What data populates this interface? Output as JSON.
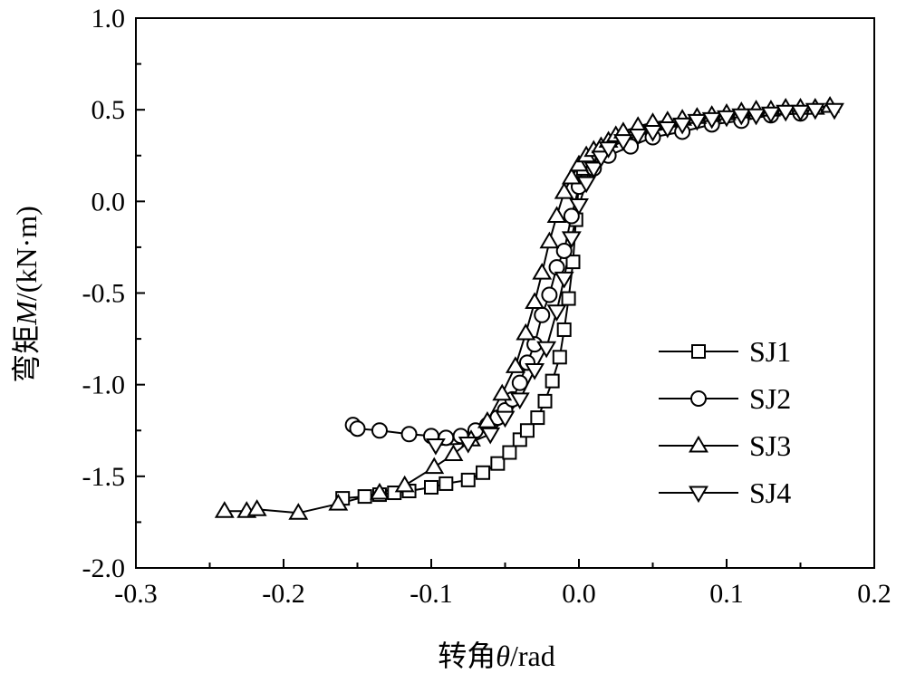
{
  "chart_data": {
    "type": "line",
    "xlabel_prefix": "转角",
    "xlabel_symbol": "θ",
    "xlabel_unit": "/rad",
    "ylabel_prefix": "弯矩",
    "ylabel_symbol": "M",
    "ylabel_unit": "/(kN·m)",
    "xlim": [
      -0.3,
      0.2
    ],
    "ylim": [
      -2.0,
      1.0
    ],
    "x_ticks": [
      -0.3,
      -0.2,
      -0.1,
      0.0,
      0.1,
      0.2
    ],
    "y_ticks": [
      1.0,
      0.5,
      0.0,
      -0.5,
      -1.0,
      -1.5,
      -2.0
    ],
    "x_tick_labels": [
      "-0.3",
      "-0.2",
      "-0.1",
      "0.0",
      "0.1",
      "0.2"
    ],
    "y_tick_labels": [
      "1.0",
      "0.5",
      "0.0",
      "-0.5",
      "-1.0",
      "-1.5",
      "-2.0"
    ],
    "grid": false,
    "legend_position": "right-middle",
    "series": [
      {
        "name": "SJ1",
        "marker": "square",
        "x": [
          -0.16,
          -0.145,
          -0.135,
          -0.125,
          -0.115,
          -0.1,
          -0.09,
          -0.075,
          -0.065,
          -0.055,
          -0.047,
          -0.04,
          -0.035,
          -0.028,
          -0.023,
          -0.018,
          -0.013,
          -0.01,
          -0.007,
          -0.004,
          -0.002,
          0.0,
          0.003,
          0.007
        ],
        "y": [
          -1.62,
          -1.61,
          -1.6,
          -1.59,
          -1.58,
          -1.56,
          -1.54,
          -1.52,
          -1.48,
          -1.43,
          -1.37,
          -1.3,
          -1.25,
          -1.18,
          -1.09,
          -0.98,
          -0.85,
          -0.7,
          -0.53,
          -0.33,
          -0.1,
          0.1,
          0.18,
          0.22
        ]
      },
      {
        "name": "SJ2",
        "marker": "circle",
        "x": [
          -0.153,
          -0.15,
          -0.135,
          -0.115,
          -0.1,
          -0.09,
          -0.08,
          -0.07,
          -0.062,
          -0.055,
          -0.05,
          -0.045,
          -0.04,
          -0.035,
          -0.03,
          -0.025,
          -0.02,
          -0.015,
          -0.01,
          -0.005,
          0.0,
          0.01,
          0.02,
          0.035,
          0.05,
          0.07,
          0.09,
          0.11,
          0.13,
          0.15
        ],
        "y": [
          -1.22,
          -1.24,
          -1.25,
          -1.27,
          -1.28,
          -1.29,
          -1.28,
          -1.25,
          -1.22,
          -1.18,
          -1.14,
          -1.08,
          -0.99,
          -0.88,
          -0.78,
          -0.62,
          -0.51,
          -0.36,
          -0.27,
          -0.08,
          0.08,
          0.18,
          0.25,
          0.3,
          0.35,
          0.38,
          0.42,
          0.44,
          0.47,
          0.48
        ]
      },
      {
        "name": "SJ3",
        "marker": "triangle-up",
        "x": [
          -0.24,
          -0.225,
          -0.218,
          -0.19,
          -0.163,
          -0.135,
          -0.118,
          -0.098,
          -0.085,
          -0.073,
          -0.062,
          -0.052,
          -0.043,
          -0.036,
          -0.03,
          -0.025,
          -0.02,
          -0.015,
          -0.01,
          -0.005,
          0.0,
          0.005,
          0.01,
          0.015,
          0.02,
          0.025,
          0.03,
          0.04,
          0.05,
          0.06,
          0.07,
          0.08,
          0.09,
          0.1,
          0.11,
          0.12,
          0.13,
          0.14,
          0.15,
          0.16,
          0.17
        ],
        "y": [
          -1.69,
          -1.69,
          -1.68,
          -1.7,
          -1.65,
          -1.59,
          -1.55,
          -1.45,
          -1.38,
          -1.3,
          -1.2,
          -1.05,
          -0.9,
          -0.72,
          -0.55,
          -0.39,
          -0.22,
          -0.08,
          0.05,
          0.13,
          0.2,
          0.25,
          0.28,
          0.3,
          0.33,
          0.36,
          0.38,
          0.41,
          0.43,
          0.44,
          0.45,
          0.46,
          0.47,
          0.48,
          0.49,
          0.5,
          0.5,
          0.51,
          0.51,
          0.51,
          0.52
        ]
      },
      {
        "name": "SJ4",
        "marker": "triangle-down",
        "x": [
          -0.097,
          -0.075,
          -0.06,
          -0.05,
          -0.04,
          -0.03,
          -0.022,
          -0.015,
          -0.01,
          -0.005,
          0.0,
          0.005,
          0.01,
          0.015,
          0.02,
          0.03,
          0.04,
          0.05,
          0.06,
          0.07,
          0.08,
          0.09,
          0.1,
          0.11,
          0.12,
          0.13,
          0.14,
          0.15,
          0.16,
          0.173
        ],
        "y": [
          -1.33,
          -1.32,
          -1.27,
          -1.18,
          -1.08,
          -0.92,
          -0.8,
          -0.6,
          -0.42,
          -0.2,
          -0.02,
          0.1,
          0.18,
          0.24,
          0.29,
          0.33,
          0.36,
          0.38,
          0.4,
          0.42,
          0.44,
          0.45,
          0.46,
          0.47,
          0.47,
          0.48,
          0.49,
          0.49,
          0.5,
          0.5
        ]
      }
    ]
  }
}
